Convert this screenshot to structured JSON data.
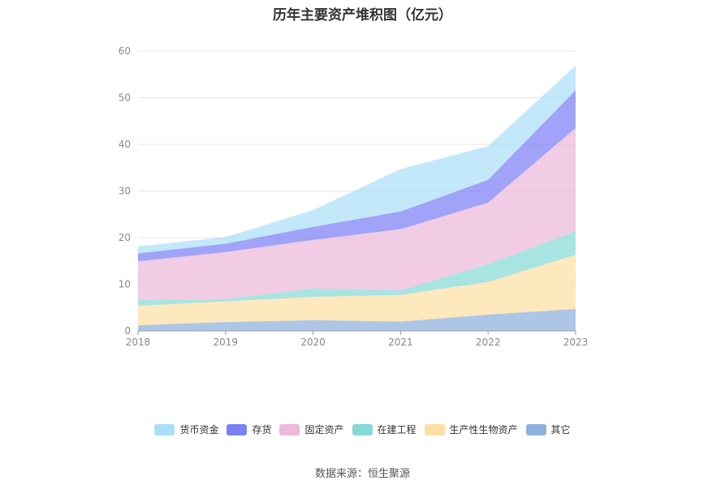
{
  "title": "历年主要资产堆积图（亿元）",
  "source": "数据来源：恒生聚源",
  "chart_data": {
    "type": "area",
    "stacked": true,
    "x": [
      "2018",
      "2019",
      "2020",
      "2021",
      "2022",
      "2023"
    ],
    "ylim": [
      0,
      60
    ],
    "yticks": [
      "0",
      "10",
      "20",
      "30",
      "40",
      "50",
      "60"
    ],
    "grid": true,
    "legend_position": "bottom",
    "series": [
      {
        "name": "其它",
        "color": "#8fb0dc",
        "values": [
          1.2,
          1.9,
          2.3,
          2.0,
          3.5,
          4.7
        ]
      },
      {
        "name": "生产性生物资产",
        "color": "#fddfa3",
        "values": [
          4.2,
          4.4,
          5.0,
          5.7,
          7.0,
          11.6
        ]
      },
      {
        "name": "在建工程",
        "color": "#86d9d6",
        "values": [
          1.2,
          0.5,
          1.8,
          1.0,
          3.8,
          5.1
        ]
      },
      {
        "name": "固定资产",
        "color": "#ebb9d9",
        "values": [
          8.3,
          10.1,
          10.4,
          13.1,
          13.2,
          22.1
        ]
      },
      {
        "name": "存货",
        "color": "#7b80f5",
        "values": [
          1.7,
          1.8,
          2.8,
          3.8,
          4.9,
          8.1
        ]
      },
      {
        "name": "货币资金",
        "color": "#abdff8",
        "values": [
          1.5,
          1.4,
          3.6,
          9.1,
          7.2,
          5.3
        ]
      }
    ]
  }
}
